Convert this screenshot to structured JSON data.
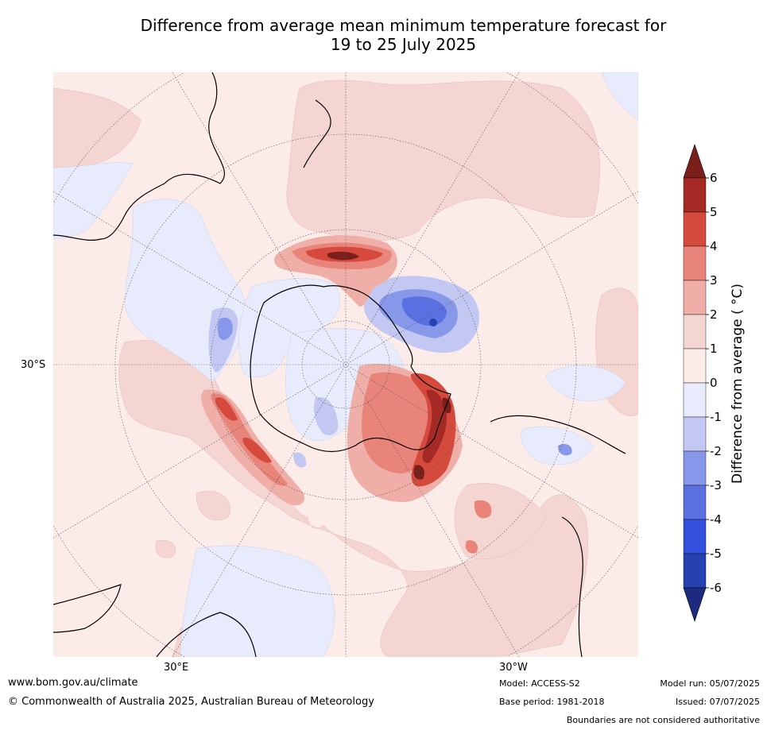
{
  "title_line1": "Difference from average mean minimum temperature forecast for",
  "title_line2": "19 to 25 July 2025",
  "map": {
    "projection": "south-polar-stereographic",
    "lat_label": "30°S",
    "lon_labels": [
      "30°E",
      "30°W"
    ]
  },
  "colorbar": {
    "title": "Difference from average ( °C)",
    "tick_labels": [
      "6",
      "5",
      "4",
      "3",
      "2",
      "1",
      "0",
      "-1",
      "-2",
      "-3",
      "-4",
      "-5",
      "-6"
    ],
    "colors": [
      "#7a1f1a",
      "#a52a26",
      "#d64a3e",
      "#e8847a",
      "#efaea8",
      "#f5d5d2",
      "#fcece9",
      "#e8ebfb",
      "#c2c8f2",
      "#8797ea",
      "#5a70e0",
      "#3350dd",
      "#2540b0",
      "#1d2a80"
    ],
    "extend": "both"
  },
  "footer": {
    "website": "www.bom.gov.au/climate",
    "copyright": "© Commonwealth of Australia 2025, Australian Bureau of Meteorology",
    "model": "Model: ACCESS-S2",
    "base_period": "Base period: 1981-2018",
    "model_run": "Model run: 05/07/2025",
    "issued": "Issued: 07/07/2025",
    "disclaimer": "Boundaries are not considered authoritative"
  }
}
